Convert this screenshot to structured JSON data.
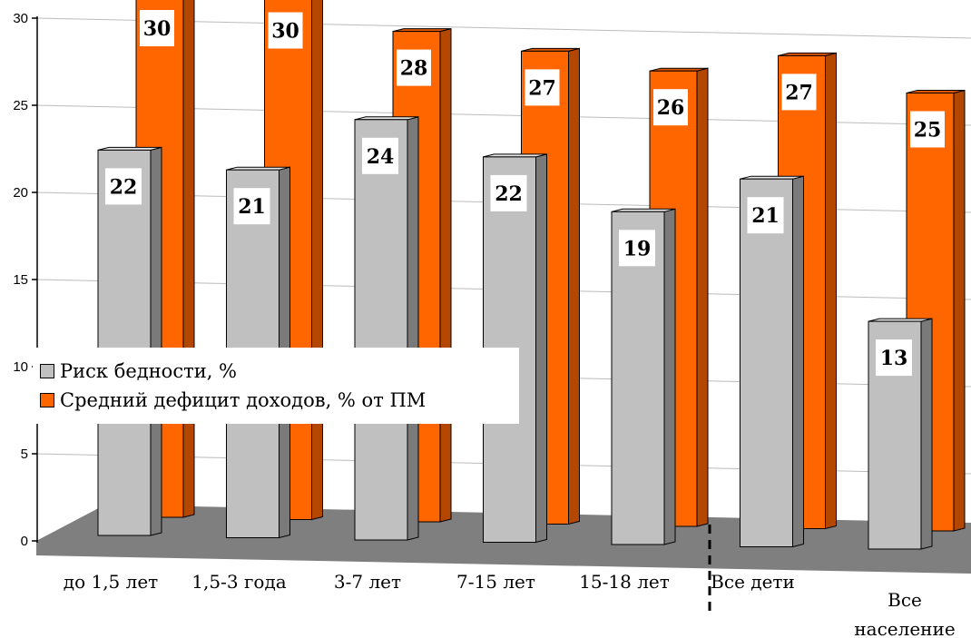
{
  "chart_data": {
    "type": "bar",
    "categories": [
      "до 1,5 лет",
      "1,5-3 года",
      "3-7 лет",
      "7-15 лет",
      "15-18 лет",
      "Все дети",
      [
        "Все",
        "население"
      ]
    ],
    "series": [
      {
        "name": "Риск бедности, %",
        "color": "#c0c0c0",
        "values": [
          22,
          21,
          24,
          22,
          19,
          21,
          13
        ]
      },
      {
        "name": "Средний дефицит доходов, % от ПМ",
        "color": "#ff6600",
        "values": [
          30,
          30,
          28,
          27,
          26,
          27,
          25
        ]
      }
    ],
    "y_ticks": [
      "0",
      "5",
      "10",
      "15",
      "20",
      "25",
      "30"
    ],
    "ylim": [
      0,
      30
    ],
    "grid": true,
    "three_d": true,
    "legend_position": "left-middle",
    "separator": "dashed vertical line between 15-18 лет and Все дети",
    "colors": {
      "floor": "#7f7f7f",
      "gray_bar": "#c0c0c0",
      "gray_side": "#7a7a7a",
      "orange_bar": "#ff6600",
      "orange_side": "#b34700"
    }
  }
}
